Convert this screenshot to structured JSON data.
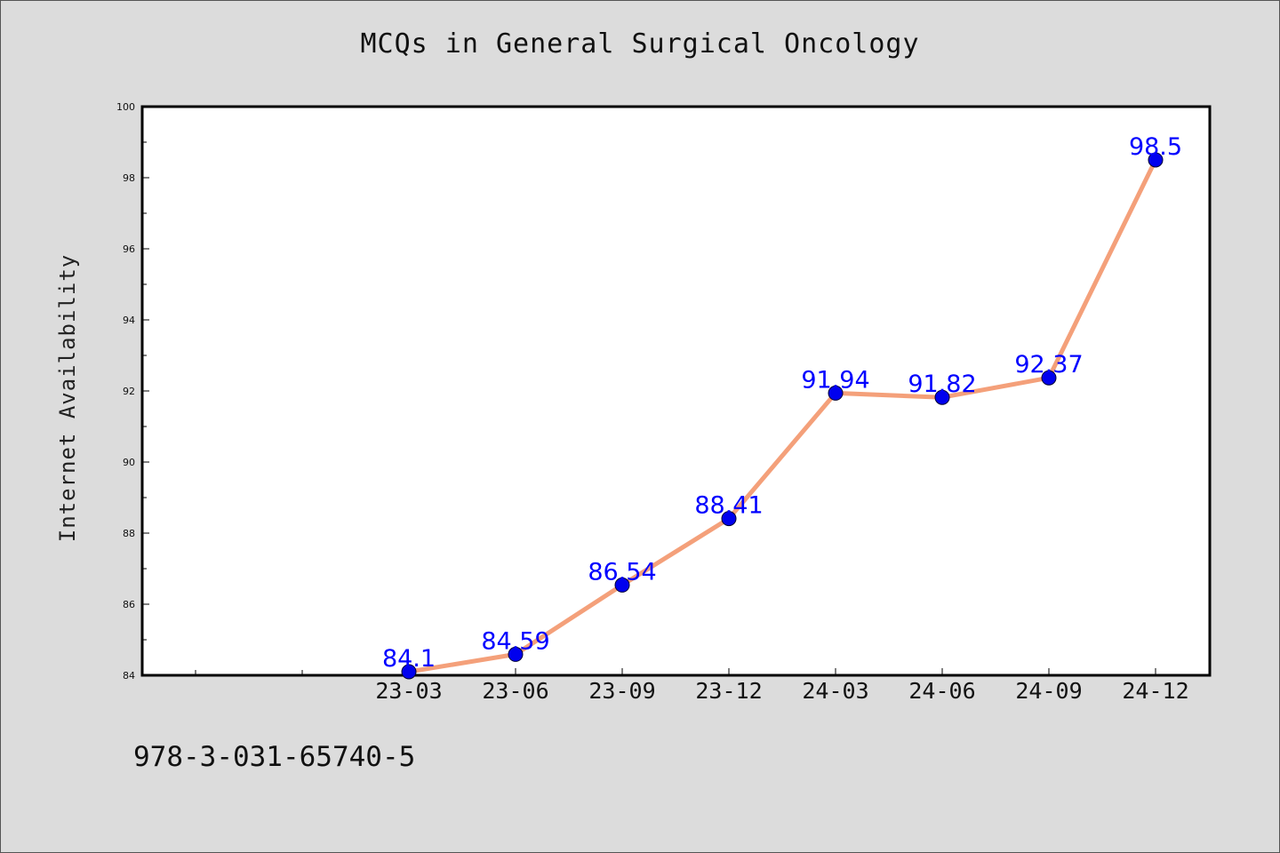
{
  "chart_data": {
    "type": "line",
    "title": "MCQs in General Surgical Oncology",
    "xlabel": "",
    "ylabel": "Internet Availability",
    "categories": [
      "23-03",
      "23-06",
      "23-09",
      "23-12",
      "24-03",
      "24-06",
      "24-09",
      "24-12"
    ],
    "values": [
      84.1,
      84.59,
      86.54,
      88.41,
      91.94,
      91.82,
      92.37,
      98.5
    ],
    "data_labels": [
      "84.1",
      "84.59",
      "86.54",
      "88.41",
      "91.94",
      "91.82",
      "92.37",
      "98.5"
    ],
    "ylim": [
      84,
      100
    ],
    "y_ticks": [
      "84",
      "86",
      "88",
      "90",
      "92",
      "94",
      "96",
      "98",
      "100"
    ],
    "grid": false,
    "colors": {
      "line": "#f4a07a",
      "marker": "#0000ee",
      "label": "#0000ff",
      "background": "#dcdcdc",
      "plot_background": "#ffffff"
    }
  },
  "footer": {
    "isbn": "978-3-031-65740-5"
  }
}
